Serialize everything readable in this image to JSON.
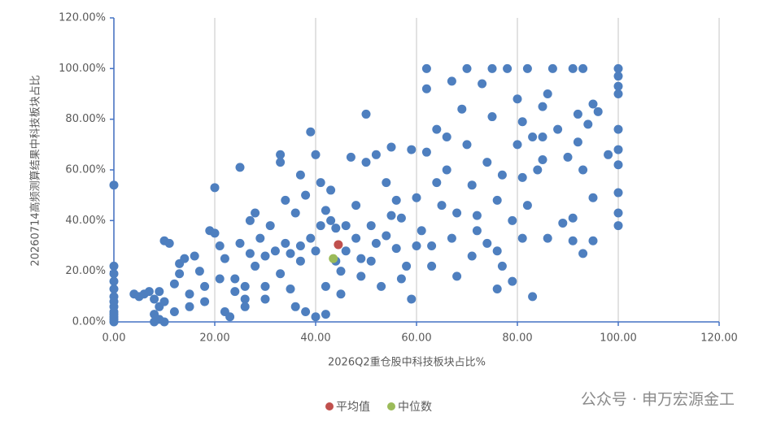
{
  "chart_data": {
    "type": "scatter",
    "x_label": "2026Q2重仓股中科技板块占比%",
    "y_label": "20260714高频测算结果中科技板块占比",
    "watermark": "公众号 · 申万宏源金工",
    "xlim": [
      0,
      120
    ],
    "ylim": [
      0,
      120
    ],
    "xticks": [
      {
        "value": 0,
        "label": "0.00"
      },
      {
        "value": 20,
        "label": "20.00"
      },
      {
        "value": 40,
        "label": "40.00"
      },
      {
        "value": 60,
        "label": "60.00"
      },
      {
        "value": 80,
        "label": "80.00"
      },
      {
        "value": 100,
        "label": "100.00"
      },
      {
        "value": 120,
        "label": "120.00"
      }
    ],
    "yticks": [
      {
        "value": 0,
        "label": "0.00%"
      },
      {
        "value": 20,
        "label": "20.00%"
      },
      {
        "value": 40,
        "label": "40.00%"
      },
      {
        "value": 60,
        "label": "60.00%"
      },
      {
        "value": 80,
        "label": "80.00%"
      },
      {
        "value": 100,
        "label": "100.00%"
      },
      {
        "value": 120,
        "label": "120.00%"
      }
    ],
    "grid": true,
    "series": [
      {
        "color": "#4e7fbf",
        "x": [
          0,
          0,
          0,
          0,
          0,
          0,
          0,
          0,
          0,
          0,
          0,
          0,
          0,
          4,
          5,
          6,
          7,
          8,
          8,
          9,
          9,
          10,
          10,
          10,
          11,
          12,
          13,
          13,
          14,
          15,
          16,
          17,
          18,
          19,
          20,
          20,
          21,
          21,
          22,
          22,
          23,
          24,
          24,
          25,
          25,
          26,
          26,
          27,
          27,
          28,
          28,
          29,
          30,
          30,
          31,
          32,
          33,
          33,
          33,
          34,
          34,
          35,
          35,
          36,
          36,
          37,
          37,
          38,
          38,
          39,
          39,
          40,
          40,
          41,
          41,
          42,
          42,
          42,
          43,
          43,
          44,
          45,
          45,
          46,
          47,
          48,
          48,
          49,
          50,
          50,
          51,
          51,
          52,
          53,
          54,
          54,
          55,
          56,
          56,
          57,
          58,
          59,
          59,
          60,
          61,
          62,
          62,
          62,
          63,
          63,
          64,
          65,
          66,
          66,
          67,
          67,
          68,
          69,
          70,
          70,
          71,
          71,
          72,
          73,
          74,
          74,
          75,
          75,
          76,
          76,
          77,
          77,
          78,
          79,
          80,
          80,
          81,
          81,
          81,
          82,
          82,
          83,
          83,
          84,
          85,
          85,
          86,
          86,
          87,
          88,
          89,
          90,
          91,
          91,
          91,
          92,
          92,
          93,
          93,
          93,
          94,
          95,
          95,
          95,
          96,
          98,
          100,
          100,
          100,
          100,
          100,
          100,
          100,
          100,
          100,
          100,
          44,
          46,
          49,
          52,
          55,
          57,
          60,
          64,
          68,
          72,
          76,
          79,
          85,
          40,
          37,
          30,
          26,
          18,
          15,
          12,
          9,
          8
        ],
        "values": [
          0,
          2,
          4,
          6,
          8,
          10,
          13,
          16,
          19,
          22,
          54,
          1,
          3,
          11,
          10,
          11,
          12,
          0,
          3,
          6,
          12,
          0,
          8,
          32,
          31,
          15,
          19,
          23,
          25,
          11,
          26,
          20,
          8,
          36,
          53,
          35,
          17,
          30,
          25,
          4,
          2,
          12,
          17,
          61,
          31,
          6,
          14,
          40,
          27,
          22,
          43,
          33,
          26,
          9,
          38,
          28,
          66,
          63,
          19,
          48,
          31,
          13,
          27,
          43,
          6,
          58,
          24,
          4,
          50,
          33,
          75,
          66,
          2,
          55,
          38,
          44,
          14,
          3,
          40,
          52,
          37,
          20,
          11,
          28,
          65,
          46,
          33,
          18,
          82,
          63,
          38,
          24,
          66,
          14,
          55,
          34,
          69,
          48,
          29,
          41,
          22,
          68,
          9,
          49,
          36,
          100,
          92,
          67,
          30,
          22,
          76,
          46,
          73,
          60,
          95,
          33,
          18,
          84,
          70,
          100,
          54,
          26,
          42,
          94,
          63,
          31,
          100,
          81,
          48,
          13,
          58,
          22,
          100,
          40,
          88,
          70,
          79,
          57,
          33,
          100,
          46,
          10,
          73,
          60,
          85,
          64,
          90,
          33,
          100,
          76,
          39,
          65,
          100,
          41,
          32,
          82,
          71,
          100,
          60,
          27,
          78,
          86,
          49,
          32,
          83,
          66,
          100,
          97,
          93,
          90,
          76,
          68,
          62,
          51,
          43,
          38,
          24,
          38,
          25,
          31,
          42,
          17,
          30,
          55,
          43,
          36,
          28,
          16,
          73,
          28,
          30,
          14,
          9,
          14,
          6,
          4,
          1,
          9
        ]
      },
      {
        "name": "平均值",
        "color": "#c0504d",
        "x": [
          44.5
        ],
        "values": [
          30.5
        ]
      },
      {
        "name": "中位数",
        "color": "#9bbb59",
        "x": [
          43.5
        ],
        "values": [
          25
        ]
      }
    ]
  }
}
